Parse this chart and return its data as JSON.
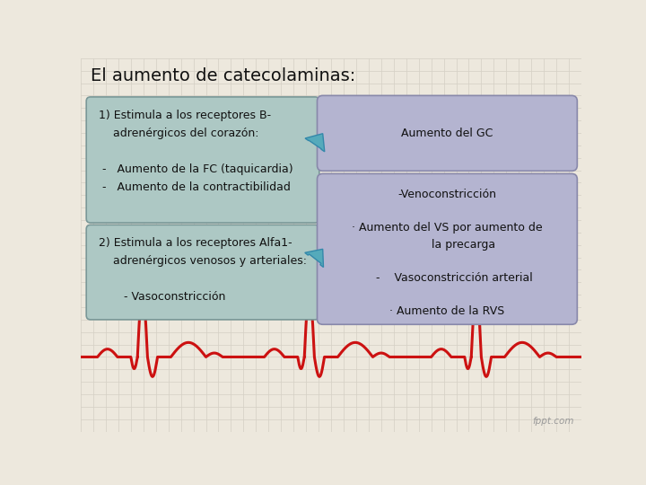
{
  "title": "El aumento de catecolaminas:",
  "bg_color": "#ede8dd",
  "grid_color": "#d4cfc4",
  "left_box1_line1": "1) Estimula a los receptores B-",
  "left_box1_line2": "    adrenérgicos del corazón:",
  "left_box1_line3": "",
  "left_box1_line4": " -   Aumento de la FC (taquicardia)",
  "left_box1_line5": " -   Aumento de la contractibilidad",
  "left_box2_line1": "2) Estimula a los receptores Alfa1-",
  "left_box2_line2": "    adrenérgicos venosos y arteriales:",
  "left_box2_line3": "",
  "left_box2_line4": "       - Vasoconstricción",
  "right_box1_text": "Aumento del GC",
  "right_box2_line1": "-Venoconstricción",
  "right_box2_line2": "",
  "right_box2_line3": "· Aumento del VS por aumento de",
  "right_box2_line4": "         la precarga",
  "right_box2_line5": "",
  "right_box2_line6": "    -    Vasoconstricción arterial",
  "right_box2_line7": "",
  "right_box2_line8": "· Aumento de la RVS",
  "left_box_facecolor": "#adc8c4",
  "left_box_edgecolor": "#7a9898",
  "right_box_facecolor": "#b4b4d0",
  "right_box_edgecolor": "#8888aa",
  "arrow_facecolor": "#55aabb",
  "arrow_edgecolor": "#3388aa",
  "ecg_color": "#cc1111",
  "title_fontsize": 14,
  "body_fontsize": 9,
  "watermark": "fppt.com"
}
